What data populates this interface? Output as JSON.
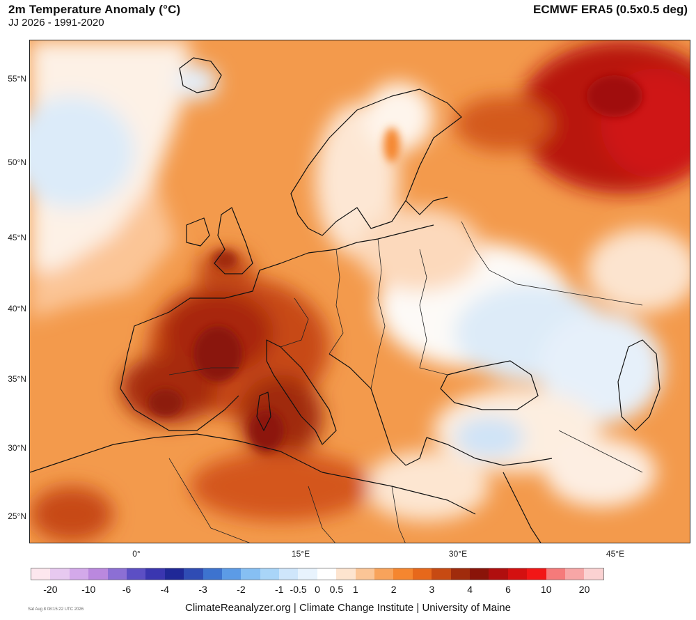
{
  "header": {
    "title": "2m Temperature Anomaly (°C)",
    "subtitle": "JJ 2026 - 1991-2020",
    "source": "ECMWF ERA5 (0.5x0.5 deg)"
  },
  "axes": {
    "lat_labels": [
      "55°N",
      "50°N",
      "45°N",
      "40°N",
      "35°N",
      "30°N",
      "25°N"
    ],
    "lon_labels": [
      "0°",
      "15°E",
      "30°E",
      "45°E"
    ]
  },
  "colorbar": {
    "colors": [
      "#fde7ee",
      "#e7c9f0",
      "#d3a9ea",
      "#ba88de",
      "#8c6fd4",
      "#5c4fc4",
      "#3a36b0",
      "#1f2897",
      "#2f4cb4",
      "#3d73cf",
      "#5c9be6",
      "#86bff3",
      "#a9d5f8",
      "#cfe6fb",
      "#e8f3fd",
      "#ffffff",
      "#fde4cf",
      "#fbc596",
      "#f8a35b",
      "#f5862f",
      "#e7681b",
      "#c74a12",
      "#a02b0c",
      "#8a1409",
      "#b00e0e",
      "#d41010",
      "#f21616",
      "#f57a7a",
      "#f7a6a6",
      "#fbd2d2"
    ],
    "labels": [
      "-20",
      "-10",
      "-6",
      "-4",
      "-3",
      "-2",
      "-1",
      "-0.5",
      "0",
      "0.5",
      "1",
      "2",
      "3",
      "4",
      "6",
      "10",
      "20"
    ]
  },
  "footer": {
    "credit": "ClimateReanalyzer.org | Climate Change Institute | University of Maine",
    "timestamp": "Sat Aug 8 08:15:22 UTC 2026"
  }
}
